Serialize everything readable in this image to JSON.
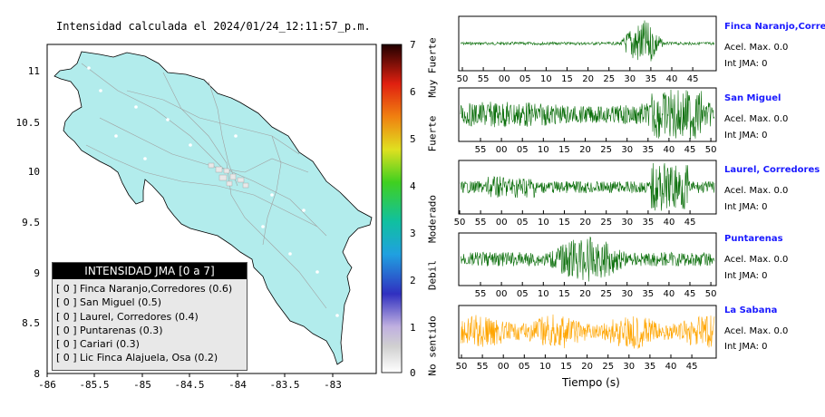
{
  "map": {
    "title": "Intensidad calculada el 2024/01/24_12:11:57_p.m.",
    "x_ticks": [
      "-86",
      "-85.5",
      "-85",
      "-84.5",
      "-84",
      "-83.5",
      "-83"
    ],
    "y_ticks": [
      "11",
      "10.5",
      "10",
      "9.5",
      "9",
      "8.5",
      "8"
    ],
    "land_color": "#b2ecec"
  },
  "legend": {
    "header": "INTENSIDAD JMA [0 a 7]",
    "items": [
      {
        "level": "[ 0 ]",
        "label": "Finca Naranjo,Corredores (0.6)"
      },
      {
        "level": "[ 0 ]",
        "label": "San Miguel (0.5)"
      },
      {
        "level": "[ 0 ]",
        "label": "Laurel, Corredores (0.4)"
      },
      {
        "level": "[ 0 ]",
        "label": "Puntarenas (0.3)"
      },
      {
        "level": "[ 0 ]",
        "label": "Cariari (0.3)"
      },
      {
        "level": "[ 0 ]",
        "label": "Lic Finca Alajuela, Osa (0.2)"
      }
    ]
  },
  "colorbar": {
    "ticks": [
      "7",
      "6",
      "5",
      "4",
      "3",
      "2",
      "1",
      "0"
    ],
    "categories": [
      "Muy Fuerte",
      "Fuerte",
      "Moderado",
      "Debil",
      "No sentido"
    ]
  },
  "chart_data": [
    {
      "type": "scatter",
      "title": "Intensidad calculada el 2024/01/24_12:11:57_p.m.",
      "xlim": [
        -86,
        -82.55
      ],
      "ylim": [
        8,
        11.3
      ],
      "stations": [
        {
          "name": "Finca Naranjo,Corredores",
          "intensity": 0.6
        },
        {
          "name": "San Miguel",
          "intensity": 0.5
        },
        {
          "name": "Laurel, Corredores",
          "intensity": 0.4
        },
        {
          "name": "Puntarenas",
          "intensity": 0.3
        },
        {
          "name": "Cariari",
          "intensity": 0.3
        },
        {
          "name": "Lic Finca Alajuela, Osa",
          "intensity": 0.2
        }
      ]
    },
    {
      "type": "line",
      "xlabel": "Tiempo (s)",
      "panels": [
        {
          "name": "Finca Naranjo,Corredores",
          "accel_label": "Acel. Max. 0.0",
          "int_label": "Int JMA: 0",
          "color": "#0a6e0a",
          "ticks": [
            "50",
            "55",
            "00",
            "05",
            "10",
            "15",
            "20",
            "25",
            "30",
            "35",
            "40",
            "45"
          ]
        },
        {
          "name": "San Miguel",
          "accel_label": "Acel. Max. 0.0",
          "int_label": "Int JMA: 0",
          "color": "#0a6e0a",
          "ticks": [
            "55",
            "00",
            "05",
            "10",
            "15",
            "20",
            "25",
            "30",
            "35",
            "40",
            "45",
            "50"
          ]
        },
        {
          "name": "Laurel, Corredores",
          "accel_label": "Acel. Max. 0.0",
          "int_label": "Int JMA: 0",
          "color": "#0a6e0a",
          "ticks": [
            "50",
            "55",
            "00",
            "05",
            "10",
            "15",
            "20",
            "25",
            "30",
            "35",
            "40",
            "45"
          ]
        },
        {
          "name": "Puntarenas",
          "accel_label": "Acel. Max. 0.0",
          "int_label": "Int JMA: 0",
          "color": "#0a6e0a",
          "ticks": [
            "55",
            "00",
            "05",
            "10",
            "15",
            "20",
            "25",
            "30",
            "35",
            "40",
            "45",
            "50"
          ]
        },
        {
          "name": "La Sabana",
          "accel_label": "Acel. Max. 0.0",
          "int_label": "Int JMA: 0",
          "color": "#ffa500",
          "ticks": [
            "50",
            "55",
            "00",
            "05",
            "10",
            "15",
            "20",
            "25",
            "30",
            "35",
            "40",
            "45"
          ]
        }
      ]
    }
  ]
}
